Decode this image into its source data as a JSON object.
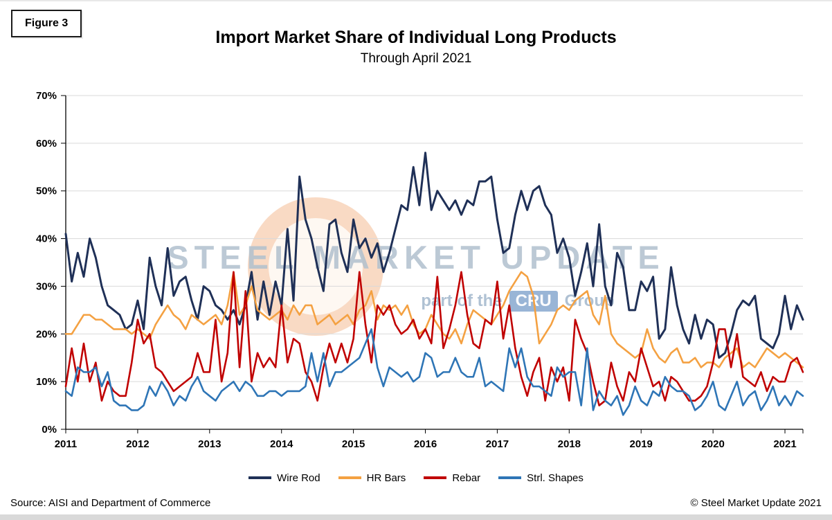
{
  "figure_label": "Figure 3",
  "title": "Import Market Share of Individual Long Products",
  "subtitle": "Through April 2021",
  "watermark": {
    "text": "STEEL MARKET UPDATE",
    "tagline_prefix": "part of the",
    "tagline_brand": "CRU",
    "tagline_suffix": "Group"
  },
  "footer": {
    "source": "Source: AISI and Department of Commerce",
    "copyright": "© Steel Market Update 2021"
  },
  "chart_data": {
    "type": "line",
    "title": "Import Market Share of Individual Long Products",
    "subtitle": "Through April 2021",
    "x_start": "2011-01",
    "x_end": "2021-04",
    "x_frequency": "monthly",
    "x_tick_labels": [
      "2011",
      "2012",
      "2013",
      "2014",
      "2015",
      "2016",
      "2017",
      "2018",
      "2019",
      "2020",
      "2021"
    ],
    "y_tick_values": [
      0,
      10,
      20,
      30,
      40,
      50,
      60,
      70
    ],
    "y_tick_labels": [
      "0%",
      "10%",
      "20%",
      "30%",
      "40%",
      "50%",
      "60%",
      "70%"
    ],
    "ylim": [
      0,
      70
    ],
    "grid": true,
    "legend_position": "bottom",
    "series": [
      {
        "name": "Wire Rod",
        "color": "#1F3057",
        "values": [
          41,
          31,
          37,
          32,
          40,
          36,
          30,
          26,
          25,
          24,
          21,
          22,
          27,
          21,
          36,
          30,
          26,
          38,
          28,
          31,
          32,
          27,
          23,
          30,
          29,
          26,
          25,
          23,
          25,
          22,
          26,
          33,
          23,
          31,
          24,
          31,
          26,
          42,
          27,
          53,
          44,
          40,
          34,
          29,
          43,
          44,
          37,
          33,
          44,
          38,
          40,
          36,
          39,
          33,
          37,
          42,
          47,
          46,
          55,
          47,
          58,
          46,
          50,
          48,
          46,
          48,
          45,
          48,
          47,
          52,
          52,
          53,
          44,
          37,
          38,
          45,
          50,
          46,
          50,
          51,
          47,
          45,
          37,
          40,
          36,
          28,
          33,
          39,
          30,
          43,
          30,
          26,
          37,
          34,
          25,
          25,
          31,
          29,
          32,
          19,
          21,
          34,
          26,
          21,
          18,
          24,
          19,
          23,
          22,
          15,
          16,
          20,
          25,
          27,
          26,
          28,
          19,
          18,
          17,
          20,
          28,
          21,
          26,
          23
        ]
      },
      {
        "name": "HR Bars",
        "color": "#F4A142",
        "values": [
          20,
          20,
          22,
          24,
          24,
          23,
          23,
          22,
          21,
          21,
          21,
          20,
          21,
          20,
          19,
          22,
          24,
          26,
          24,
          23,
          21,
          24,
          23,
          22,
          23,
          24,
          22,
          26,
          33,
          24,
          26,
          30,
          25,
          24,
          23,
          24,
          25,
          23,
          26,
          24,
          26,
          26,
          22,
          23,
          24,
          22,
          23,
          24,
          22,
          25,
          26,
          29,
          23,
          26,
          25,
          26,
          24,
          26,
          22,
          20,
          21,
          24,
          22,
          20,
          19,
          21,
          18,
          22,
          25,
          24,
          23,
          22,
          24,
          26,
          29,
          31,
          33,
          32,
          28,
          18,
          20,
          22,
          25,
          26,
          25,
          27,
          28,
          29,
          24,
          22,
          28,
          20,
          18,
          17,
          16,
          15,
          16,
          21,
          17,
          15,
          14,
          16,
          17,
          14,
          14,
          15,
          13,
          14,
          14,
          13,
          15,
          16,
          17,
          13,
          14,
          13,
          15,
          17,
          16,
          15,
          16,
          15,
          14,
          13
        ]
      },
      {
        "name": "Rebar",
        "color": "#C00000",
        "values": [
          9,
          17,
          10,
          18,
          10,
          14,
          6,
          10,
          8,
          7,
          7,
          14,
          23,
          18,
          20,
          13,
          12,
          10,
          8,
          9,
          10,
          11,
          16,
          12,
          12,
          23,
          10,
          16,
          33,
          13,
          29,
          10,
          16,
          13,
          15,
          13,
          26,
          14,
          19,
          18,
          12,
          10,
          6,
          13,
          18,
          14,
          18,
          14,
          19,
          33,
          22,
          14,
          26,
          24,
          26,
          22,
          20,
          21,
          23,
          19,
          21,
          18,
          32,
          17,
          21,
          26,
          33,
          24,
          18,
          17,
          23,
          22,
          31,
          19,
          26,
          17,
          11,
          7,
          12,
          15,
          6,
          13,
          10,
          13,
          6,
          23,
          19,
          16,
          10,
          5,
          6,
          14,
          9,
          6,
          12,
          10,
          17,
          13,
          9,
          10,
          6,
          11,
          10,
          8,
          6,
          6,
          7,
          9,
          14,
          21,
          21,
          13,
          20,
          11,
          10,
          9,
          12,
          8,
          11,
          10,
          10,
          14,
          15,
          12
        ]
      },
      {
        "name": "Strl. Shapes",
        "color": "#2E75B6",
        "values": [
          8,
          7,
          13,
          12,
          12,
          13,
          9,
          12,
          6,
          5,
          5,
          4,
          4,
          5,
          9,
          7,
          10,
          8,
          5,
          7,
          6,
          9,
          11,
          8,
          7,
          6,
          8,
          9,
          10,
          8,
          10,
          9,
          7,
          7,
          8,
          8,
          7,
          8,
          8,
          8,
          9,
          16,
          10,
          16,
          9,
          12,
          12,
          13,
          14,
          15,
          18,
          21,
          13,
          9,
          13,
          12,
          11,
          12,
          10,
          11,
          16,
          15,
          11,
          12,
          12,
          15,
          12,
          11,
          11,
          15,
          9,
          10,
          9,
          8,
          17,
          13,
          17,
          11,
          9,
          9,
          8,
          7,
          13,
          11,
          12,
          12,
          5,
          17,
          4,
          8,
          6,
          5,
          7,
          3,
          5,
          9,
          6,
          5,
          8,
          7,
          11,
          9,
          8,
          8,
          7,
          4,
          5,
          7,
          10,
          5,
          4,
          7,
          10,
          5,
          7,
          8,
          4,
          6,
          9,
          5,
          7,
          5,
          8,
          7
        ]
      }
    ]
  }
}
